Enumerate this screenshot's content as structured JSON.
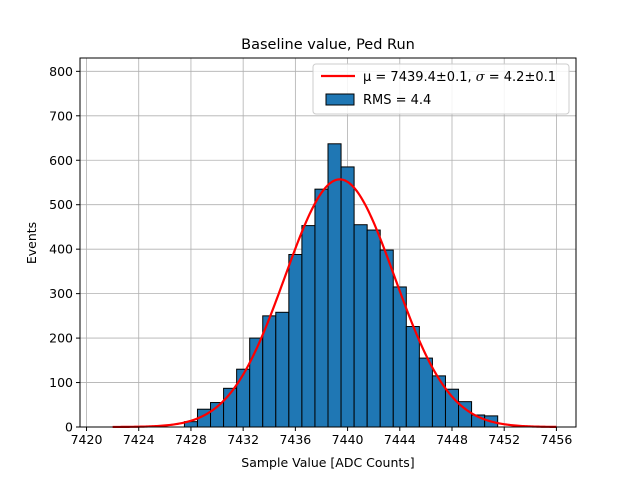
{
  "chart_data": {
    "type": "bar",
    "title": "Baseline value, Ped Run",
    "xlabel": "Sample Value [ADC Counts]",
    "ylabel": "Events",
    "xlim": [
      7419.5,
      7457.5
    ],
    "ylim": [
      0,
      830
    ],
    "x_ticks": [
      7420,
      7424,
      7428,
      7432,
      7436,
      7440,
      7444,
      7448,
      7452,
      7456
    ],
    "y_ticks": [
      0,
      100,
      200,
      300,
      400,
      500,
      600,
      700,
      800
    ],
    "grid": true,
    "legend_position": "top-right",
    "bin_width": 1,
    "histogram": {
      "name": "RMS = 4.4",
      "color": "#1f77b4",
      "edge_color": "#000000",
      "bin_centers": [
        7428,
        7429,
        7430,
        7431,
        7432,
        7433,
        7434,
        7435,
        7436,
        7437,
        7438,
        7439,
        7440,
        7441,
        7442,
        7443,
        7444,
        7445,
        7446,
        7447,
        7448,
        7449,
        7450,
        7451
      ],
      "values": [
        12,
        40,
        55,
        87,
        130,
        200,
        250,
        258,
        388,
        453,
        535,
        637,
        585,
        455,
        443,
        398,
        315,
        226,
        155,
        115,
        85,
        57,
        27,
        25
      ]
    },
    "fit": {
      "name_prefix": "μ = 7439.4±0.1, ",
      "name_sigma": "σ",
      "name_suffix": " = 4.2±0.1",
      "color": "#ff0000",
      "type": "gaussian",
      "mu": 7439.4,
      "sigma": 4.2,
      "amplitude": 557,
      "x_range": [
        7422,
        7456
      ]
    }
  }
}
